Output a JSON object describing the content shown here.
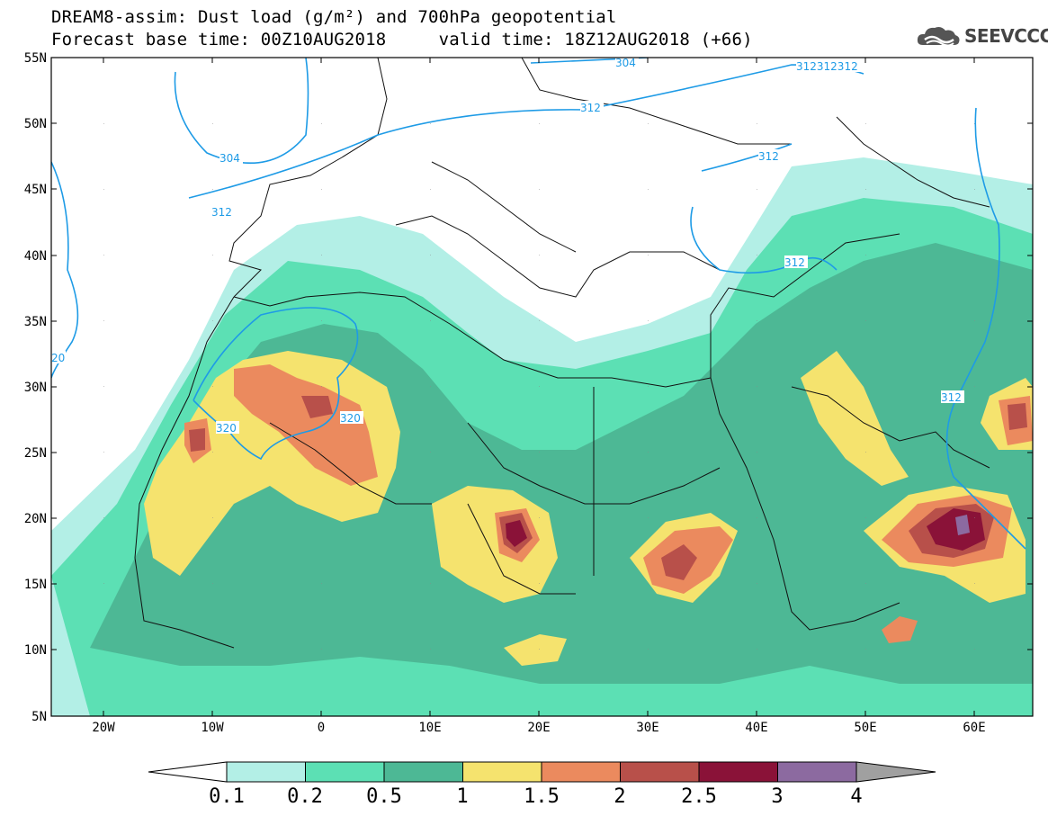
{
  "title": {
    "line1": "DREAM8-assim: Dust load (g/m²) and 700hPa geopotential",
    "line2": "Forecast base time: 00Z10AUG2018     valid time: 18Z12AUG2018 (+66)"
  },
  "logo": {
    "icon": "cloud-icon",
    "text": "SEEVCCC"
  },
  "axes": {
    "lat_labels": [
      "55N",
      "50N",
      "45N",
      "40N",
      "35N",
      "30N",
      "25N",
      "20N",
      "15N",
      "10N",
      "5N"
    ],
    "lon_labels": [
      "20W",
      "10W",
      "0",
      "10E",
      "20E",
      "30E",
      "40E",
      "50E",
      "60E"
    ]
  },
  "contours": {
    "color": "#1e9be6",
    "labels": [
      "304",
      "312312312",
      "312",
      "304",
      "312",
      "312",
      "312",
      "20",
      "320",
      "320",
      "312"
    ]
  },
  "colorbar": {
    "colors": [
      "#b3efe6",
      "#5ce0b4",
      "#4db895",
      "#f5e36e",
      "#eb8a5e",
      "#b8504a",
      "#8a1238",
      "#8c6aa0",
      "#a0a0a0"
    ],
    "labels": [
      "0.1",
      "0.2",
      "0.5",
      "1",
      "1.5",
      "2",
      "2.5",
      "3",
      "4"
    ]
  }
}
